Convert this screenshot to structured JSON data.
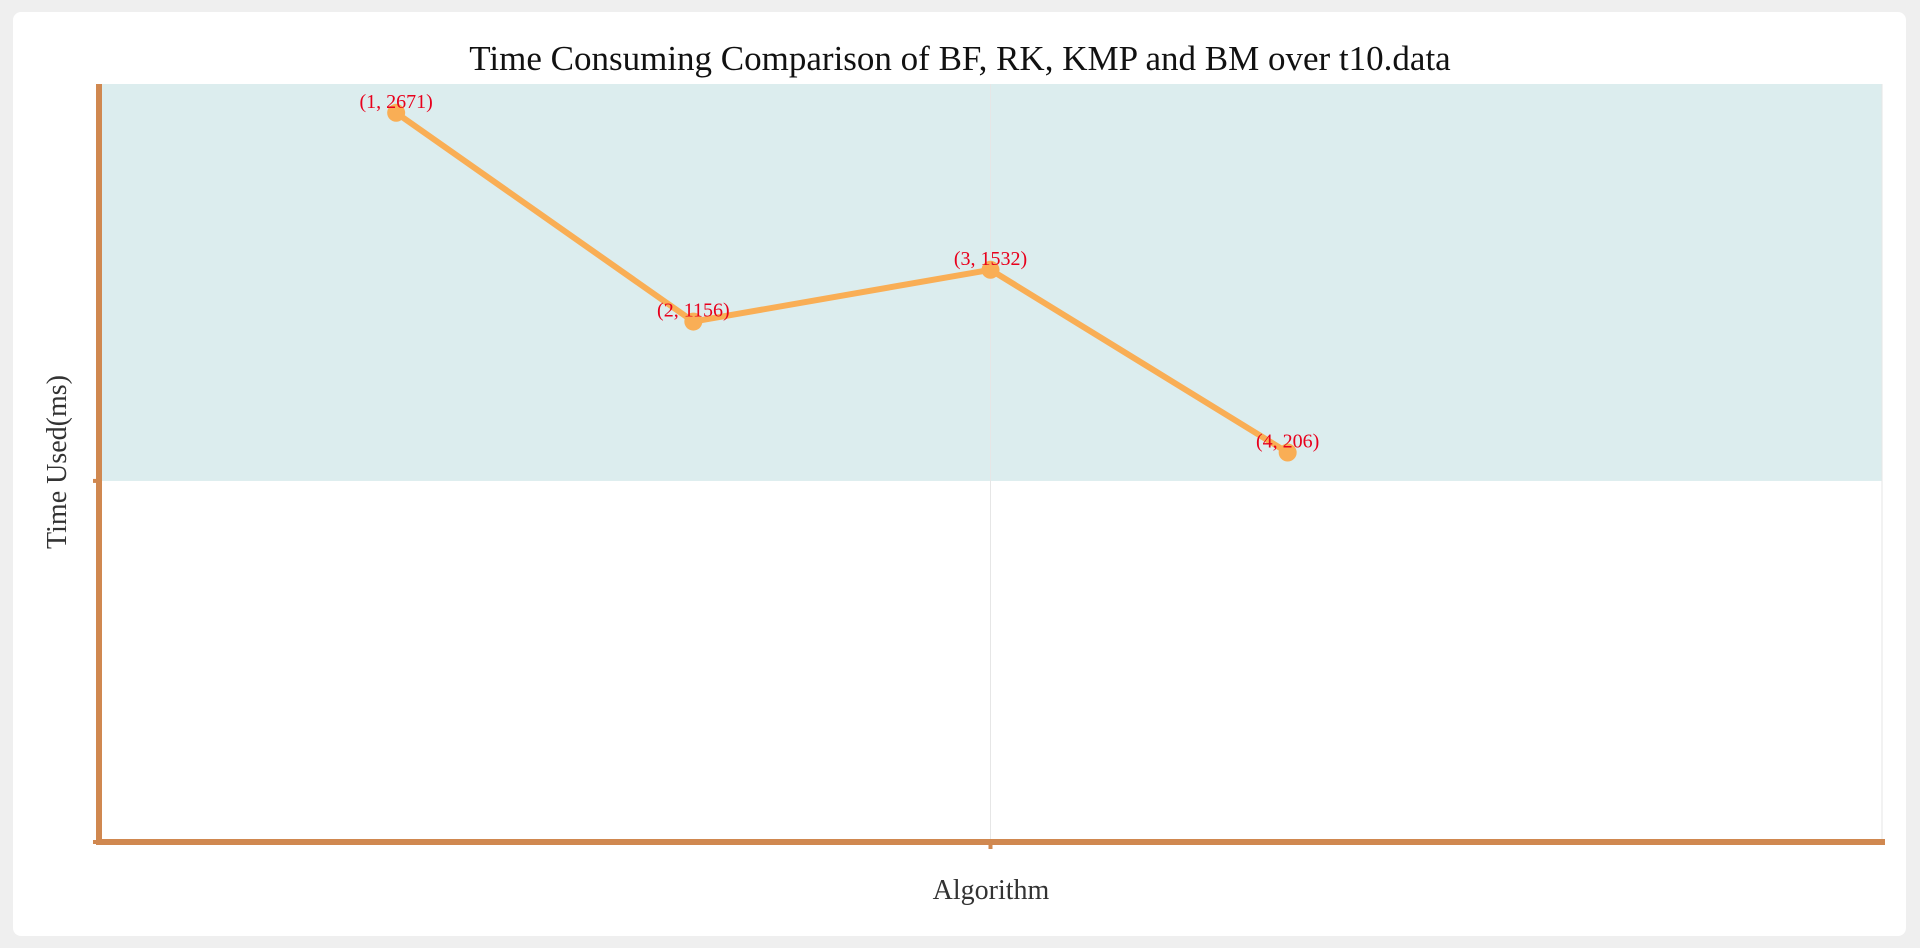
{
  "chart_data": {
    "type": "line",
    "title": "Time Consuming Comparison of BF, RK, KMP and BM over t10.data",
    "xlabel": "Algorithm",
    "ylabel": "Time Used(ms)",
    "x": [
      1,
      2,
      3,
      4
    ],
    "values": [
      2671,
      1156,
      1532,
      206
    ],
    "point_labels": [
      "(1, 2671)",
      "(2, 1156)",
      "(3, 1532)",
      "(4, 206)"
    ],
    "xlim": [
      0,
      6
    ],
    "ylim": [
      -2620,
      2880
    ],
    "shaded_band": [
      0,
      2880
    ],
    "grid": false,
    "legend": "none",
    "colors": {
      "line": "#f9ae55",
      "axis": "#d08850",
      "band": "#dcedee",
      "label": "#e8001c",
      "gridline": "#e6e6e6"
    }
  }
}
